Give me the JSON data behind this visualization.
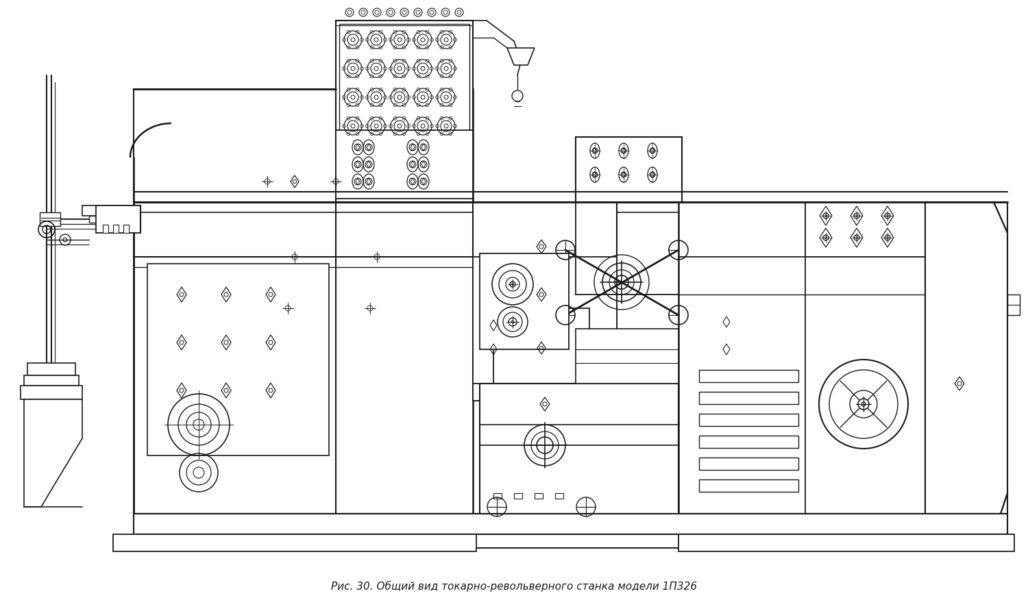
{
  "caption": "Рис. 30. Общий вид токарно-револьверного станка модели 1П326",
  "caption_fontsize": 11,
  "background_color": "#ffffff",
  "fig_width": 15.0,
  "fig_height": 8.76,
  "dpi": 100,
  "line_color": "#1a1a1a",
  "line_width": 1.0,
  "machine_bg": "#ffffff",
  "xlim": [
    0,
    1500
  ],
  "ylim": [
    0,
    876
  ]
}
